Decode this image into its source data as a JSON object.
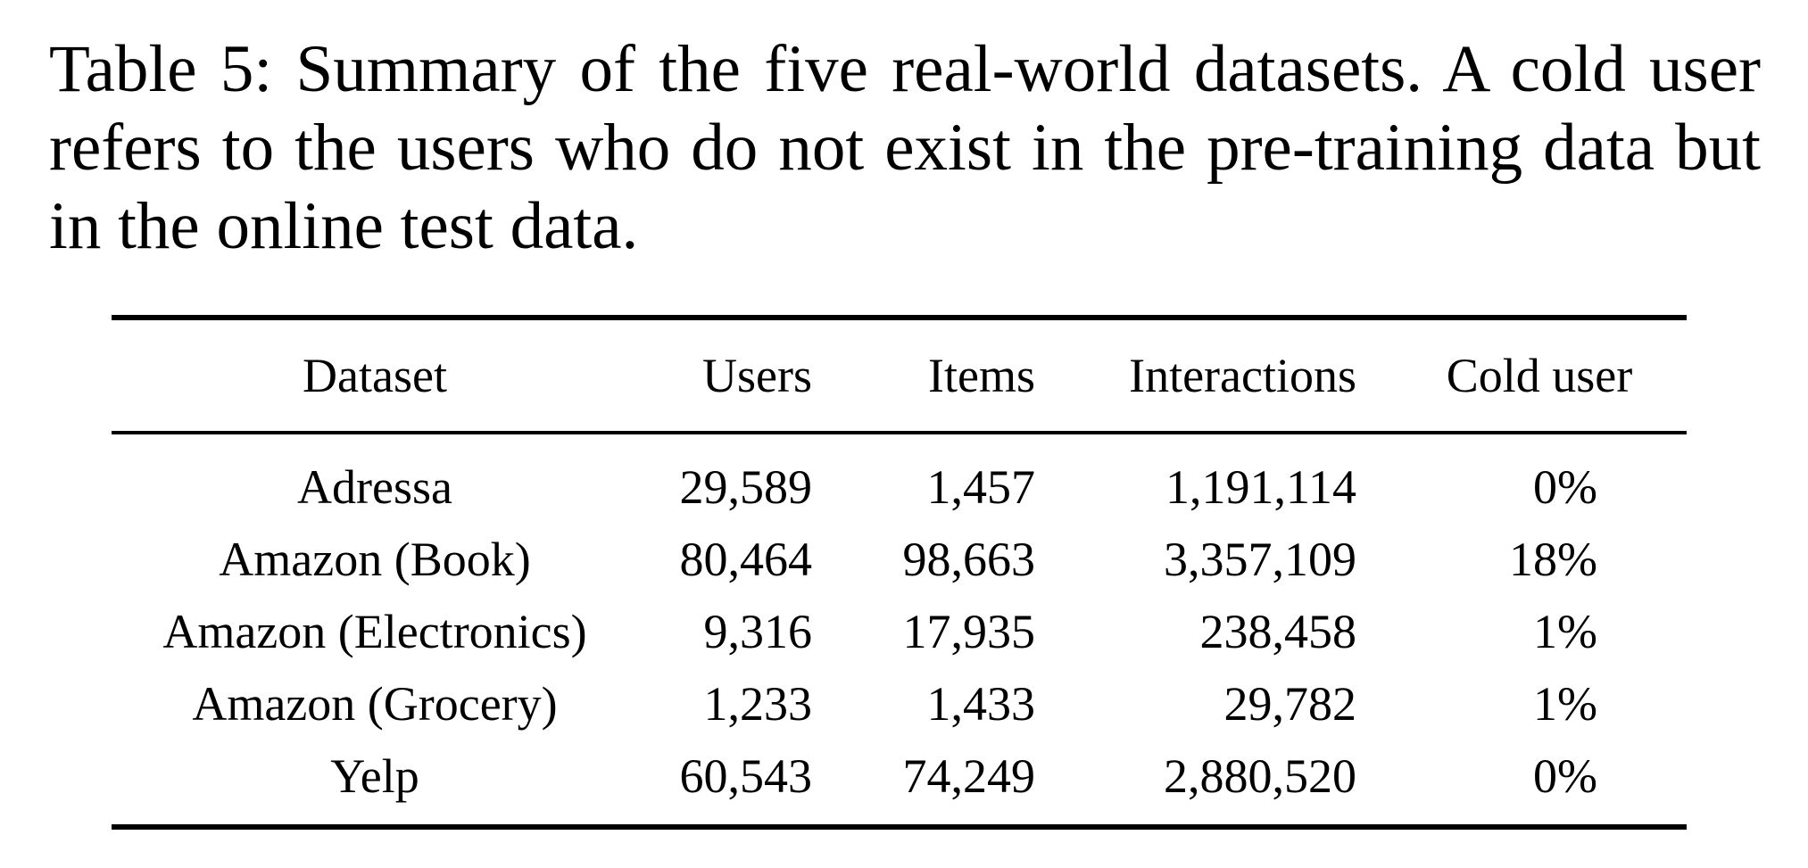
{
  "caption": "Table 5: Summary of the five real-world datasets. A cold user refers to the users who do not exist in the pre-training data but in the online test data.",
  "table": {
    "headers": [
      "Dataset",
      "Users",
      "Items",
      "Interactions",
      "Cold user"
    ],
    "rows": [
      [
        "Adressa",
        "29,589",
        "1,457",
        "1,191,114",
        "0%"
      ],
      [
        "Amazon (Book)",
        "80,464",
        "98,663",
        "3,357,109",
        "18%"
      ],
      [
        "Amazon (Electronics)",
        "9,316",
        "17,935",
        "238,458",
        "1%"
      ],
      [
        "Amazon (Grocery)",
        "1,233",
        "1,433",
        "29,782",
        "1%"
      ],
      [
        "Yelp",
        "60,543",
        "74,249",
        "2,880,520",
        "0%"
      ]
    ]
  }
}
